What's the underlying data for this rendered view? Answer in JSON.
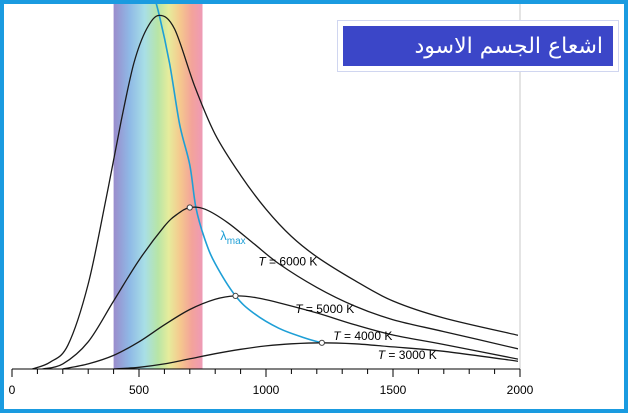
{
  "title": "اشعاع الجسم الاسود",
  "colors": {
    "frame": "#1a9be0",
    "title_bg": "#3b46c8",
    "lambda_max": "#1e9fd6",
    "curves": "#1a1a1a"
  },
  "chart_data": {
    "type": "line",
    "xlim": [
      0,
      2000
    ],
    "x_ticks": [
      "0",
      "500",
      "1000",
      "1500",
      "2000"
    ],
    "visible_band": [
      400,
      750
    ],
    "series": [
      {
        "name": "T = 6000 K",
        "label_x": 970,
        "label_y": 0.305,
        "points": [
          [
            80,
            0.0
          ],
          [
            150,
            0.02
          ],
          [
            220,
            0.07
          ],
          [
            300,
            0.25
          ],
          [
            370,
            0.5
          ],
          [
            430,
            0.73
          ],
          [
            480,
            0.9
          ],
          [
            530,
            1.0
          ],
          [
            580,
            1.04
          ],
          [
            640,
            1.0
          ],
          [
            720,
            0.83
          ],
          [
            800,
            0.69
          ],
          [
            900,
            0.57
          ],
          [
            1000,
            0.47
          ],
          [
            1100,
            0.39
          ],
          [
            1200,
            0.33
          ],
          [
            1350,
            0.26
          ],
          [
            1500,
            0.2
          ],
          [
            1700,
            0.15
          ],
          [
            2000,
            0.098
          ]
        ]
      },
      {
        "name": "T = 5000 K",
        "label_x": 1115,
        "label_y": 0.165,
        "points": [
          [
            120,
            0.0
          ],
          [
            200,
            0.015
          ],
          [
            300,
            0.08
          ],
          [
            400,
            0.2
          ],
          [
            500,
            0.32
          ],
          [
            600,
            0.42
          ],
          [
            650,
            0.455
          ],
          [
            700,
            0.475
          ],
          [
            760,
            0.47
          ],
          [
            850,
            0.43
          ],
          [
            950,
            0.37
          ],
          [
            1050,
            0.31
          ],
          [
            1200,
            0.24
          ],
          [
            1350,
            0.185
          ],
          [
            1500,
            0.145
          ],
          [
            1700,
            0.11
          ],
          [
            2000,
            0.058
          ]
        ]
      },
      {
        "name": "T = 4000 K",
        "label_x": 1265,
        "label_y": 0.085,
        "points": [
          [
            200,
            0.0
          ],
          [
            300,
            0.015
          ],
          [
            400,
            0.04
          ],
          [
            500,
            0.08
          ],
          [
            600,
            0.13
          ],
          [
            700,
            0.175
          ],
          [
            800,
            0.205
          ],
          [
            880,
            0.215
          ],
          [
            960,
            0.21
          ],
          [
            1050,
            0.195
          ],
          [
            1200,
            0.165
          ],
          [
            1350,
            0.13
          ],
          [
            1500,
            0.1
          ],
          [
            1700,
            0.072
          ],
          [
            2000,
            0.028
          ]
        ]
      },
      {
        "name": "T = 3000 K",
        "label_x": 1440,
        "label_y": 0.03,
        "points": [
          [
            400,
            0.0
          ],
          [
            500,
            0.005
          ],
          [
            600,
            0.015
          ],
          [
            700,
            0.03
          ],
          [
            800,
            0.045
          ],
          [
            900,
            0.058
          ],
          [
            1000,
            0.068
          ],
          [
            1100,
            0.074
          ],
          [
            1220,
            0.077
          ],
          [
            1350,
            0.074
          ],
          [
            1500,
            0.065
          ],
          [
            1700,
            0.052
          ],
          [
            2000,
            0.022
          ]
        ]
      }
    ],
    "lambda_max": {
      "label_main": "λ",
      "label_sub": "max",
      "label_x": 820,
      "label_y": 0.38,
      "points": [
        [
          550,
          1.12
        ],
        [
          580,
          1.04
        ],
        [
          620,
          0.9
        ],
        [
          660,
          0.72
        ],
        [
          700,
          0.6
        ],
        [
          724,
          0.475
        ],
        [
          760,
          0.38
        ],
        [
          800,
          0.31
        ],
        [
          880,
          0.215
        ],
        [
          950,
          0.165
        ],
        [
          1050,
          0.12
        ],
        [
          1150,
          0.092
        ],
        [
          1220,
          0.077
        ]
      ]
    }
  }
}
